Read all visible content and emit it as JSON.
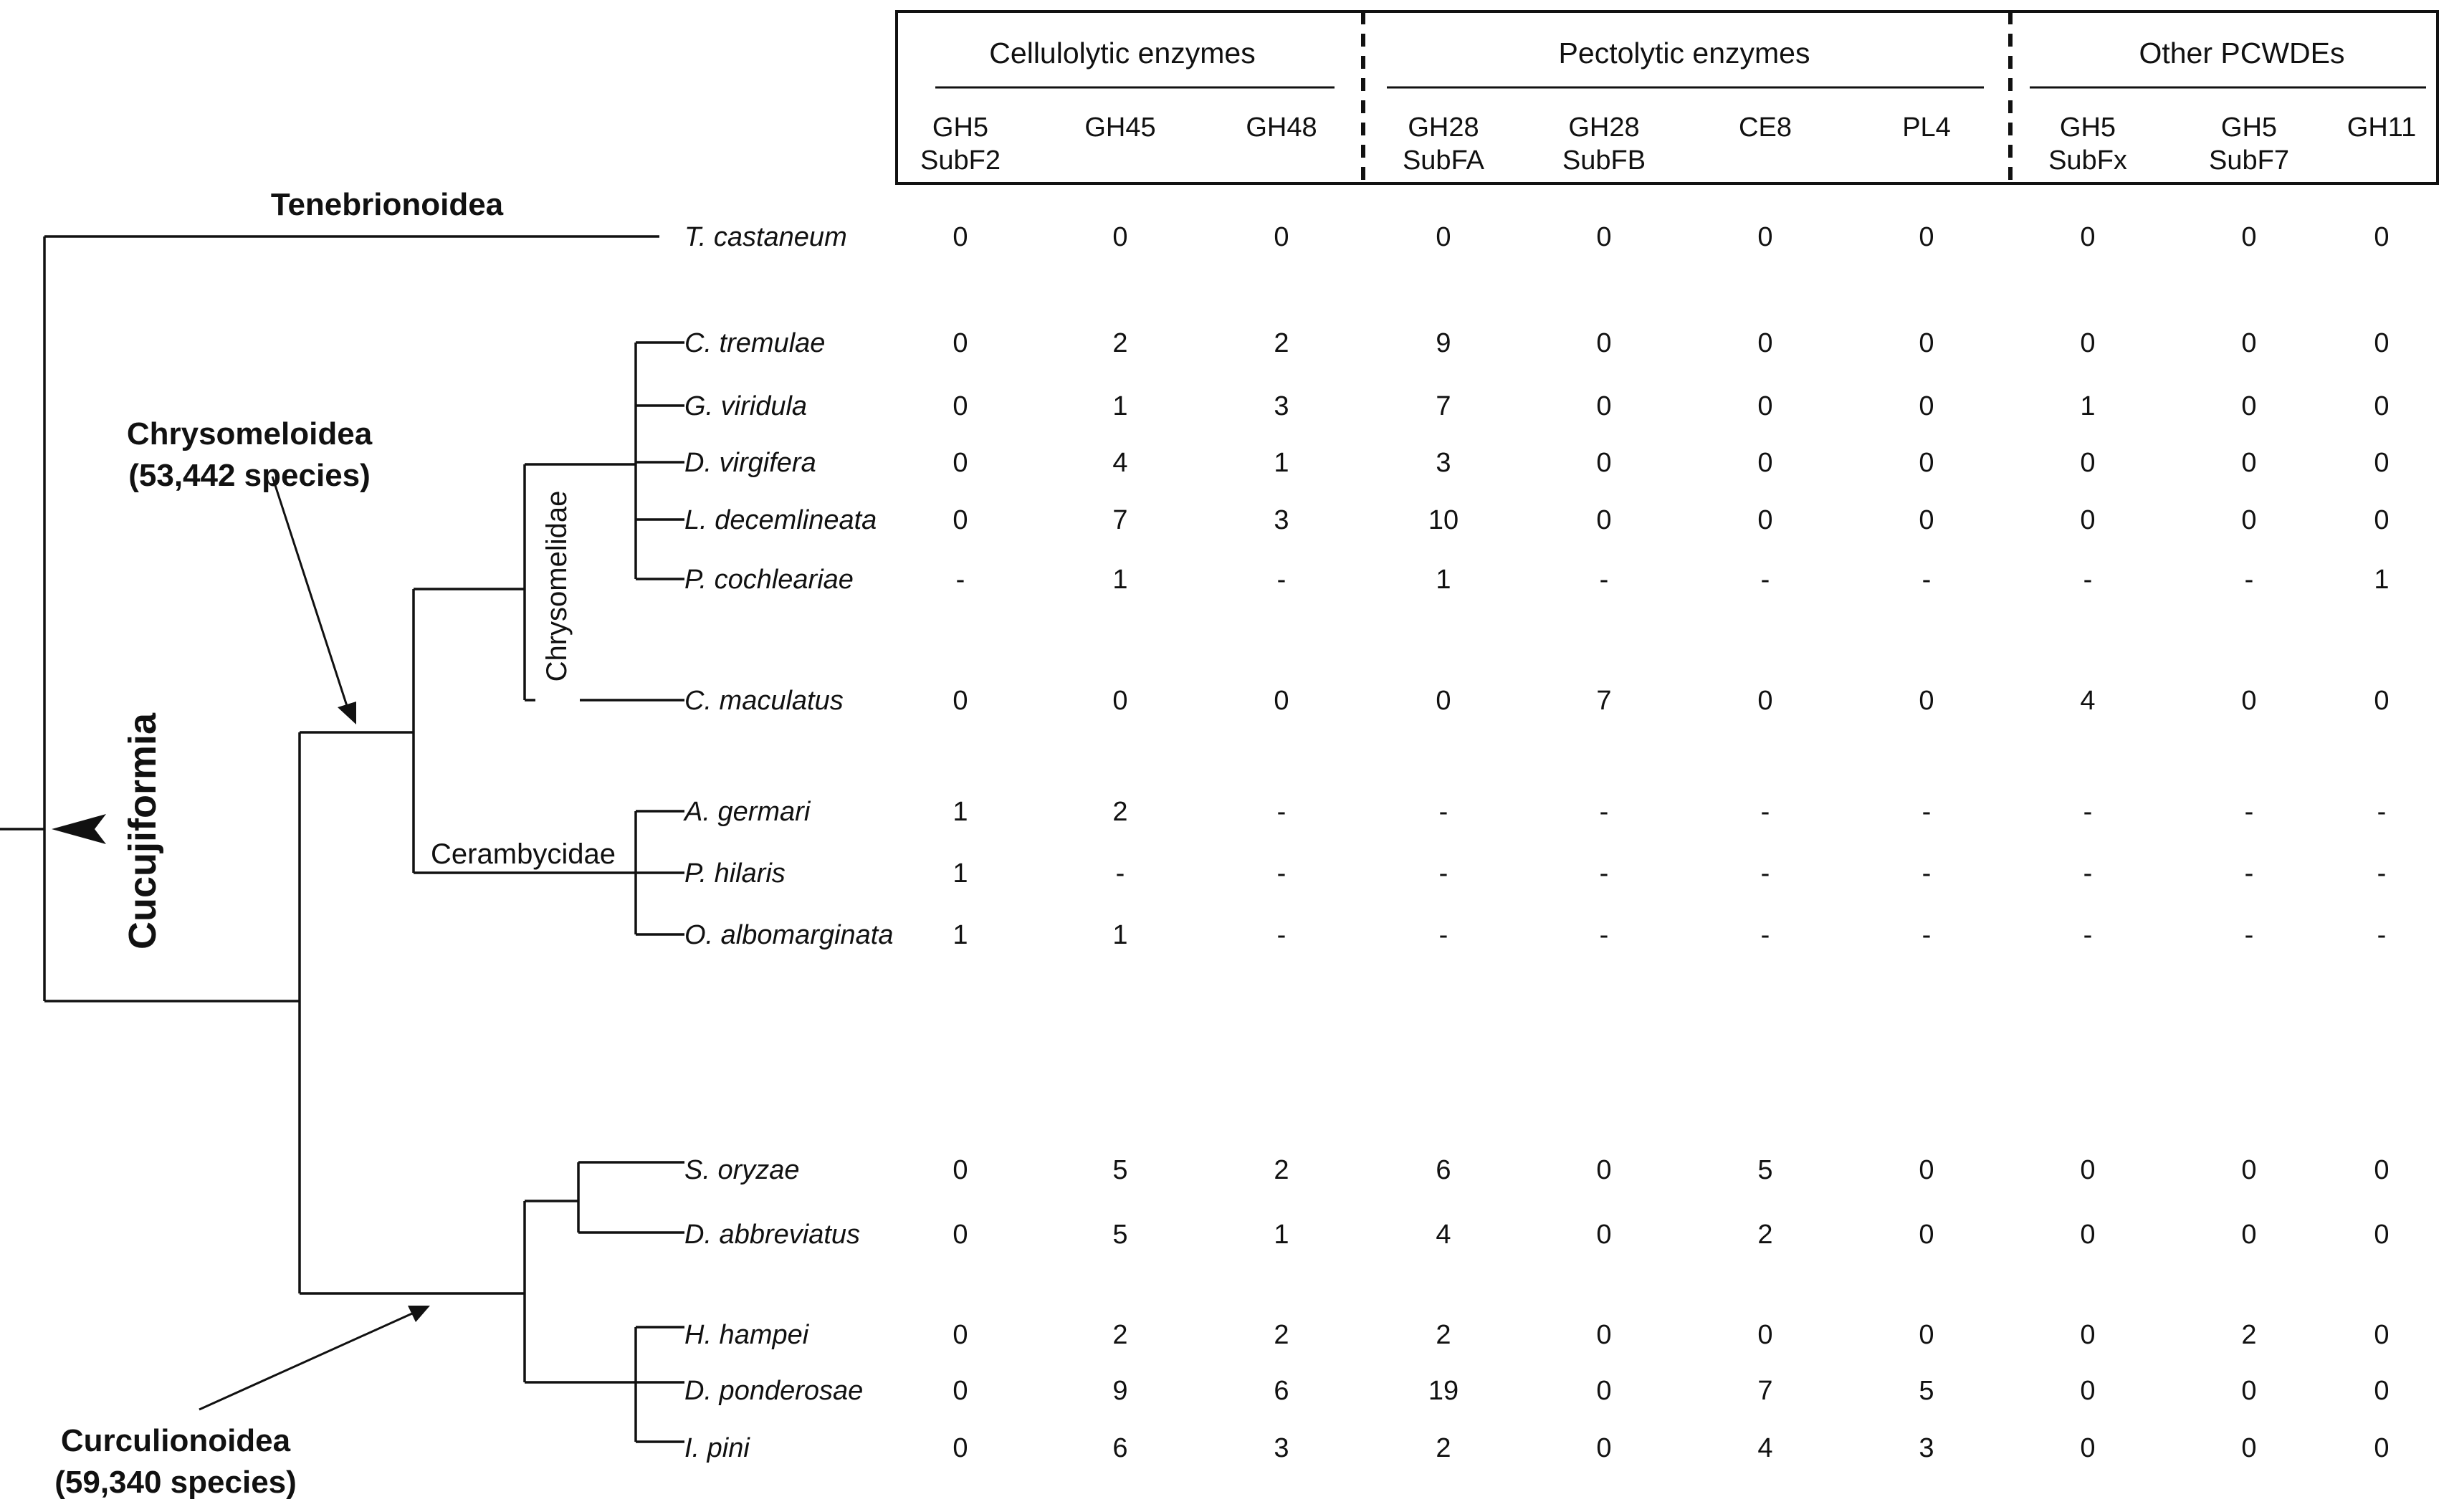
{
  "column_groups": [
    {
      "label": "Cellulolytic enzymes",
      "columns": [
        {
          "line1": "GH5",
          "line2": "SubF2"
        },
        {
          "line1": "GH45",
          "line2": ""
        },
        {
          "line1": "GH48",
          "line2": ""
        }
      ]
    },
    {
      "label": "Pectolytic enzymes",
      "columns": [
        {
          "line1": "GH28",
          "line2": "SubFA"
        },
        {
          "line1": "GH28",
          "line2": "SubFB"
        },
        {
          "line1": "CE8",
          "line2": ""
        },
        {
          "line1": "PL4",
          "line2": ""
        }
      ]
    },
    {
      "label": "Other PCWDEs",
      "columns": [
        {
          "line1": "GH5",
          "line2": "SubFx"
        },
        {
          "line1": "GH5",
          "line2": "SubF7"
        },
        {
          "line1": "GH11",
          "line2": ""
        }
      ]
    }
  ],
  "rows": [
    {
      "species": "T. castaneum",
      "values": [
        "0",
        "0",
        "0",
        "0",
        "0",
        "0",
        "0",
        "0",
        "0",
        "0"
      ]
    },
    {
      "species": "C. tremulae",
      "values": [
        "0",
        "2",
        "2",
        "9",
        "0",
        "0",
        "0",
        "0",
        "0",
        "0"
      ]
    },
    {
      "species": "G. viridula",
      "values": [
        "0",
        "1",
        "3",
        "7",
        "0",
        "0",
        "0",
        "1",
        "0",
        "0"
      ]
    },
    {
      "species": "D. virgifera",
      "values": [
        "0",
        "4",
        "1",
        "3",
        "0",
        "0",
        "0",
        "0",
        "0",
        "0"
      ]
    },
    {
      "species": "L. decemlineata",
      "values": [
        "0",
        "7",
        "3",
        "10",
        "0",
        "0",
        "0",
        "0",
        "0",
        "0"
      ]
    },
    {
      "species": "P. cochleariae",
      "values": [
        "-",
        "1",
        "-",
        "1",
        "-",
        "-",
        "-",
        "-",
        "-",
        "1"
      ]
    },
    {
      "species": "C. maculatus",
      "values": [
        "0",
        "0",
        "0",
        "0",
        "7",
        "0",
        "0",
        "4",
        "0",
        "0"
      ]
    },
    {
      "species": "A. germari",
      "values": [
        "1",
        "2",
        "-",
        "-",
        "-",
        "-",
        "-",
        "-",
        "-",
        "-"
      ]
    },
    {
      "species": "P. hilaris",
      "values": [
        "1",
        "-",
        "-",
        "-",
        "-",
        "-",
        "-",
        "-",
        "-",
        "-"
      ]
    },
    {
      "species": "O. albomarginata",
      "values": [
        "1",
        "1",
        "-",
        "-",
        "-",
        "-",
        "-",
        "-",
        "-",
        "-"
      ]
    },
    {
      "species": "S. oryzae",
      "values": [
        "0",
        "5",
        "2",
        "6",
        "0",
        "5",
        "0",
        "0",
        "0",
        "0"
      ]
    },
    {
      "species": "D. abbreviatus",
      "values": [
        "0",
        "5",
        "1",
        "4",
        "0",
        "2",
        "0",
        "0",
        "0",
        "0"
      ]
    },
    {
      "species": "H. hampei",
      "values": [
        "0",
        "2",
        "2",
        "2",
        "0",
        "0",
        "0",
        "0",
        "2",
        "0"
      ]
    },
    {
      "species": "D. ponderosae",
      "values": [
        "0",
        "9",
        "6",
        "19",
        "0",
        "7",
        "5",
        "0",
        "0",
        "0"
      ]
    },
    {
      "species": "I. pini",
      "values": [
        "0",
        "6",
        "3",
        "2",
        "0",
        "4",
        "3",
        "0",
        "0",
        "0"
      ]
    }
  ],
  "clades": {
    "tenebrionoidea": "Tenebrionoidea",
    "chrysomeloidea_line1": "Chrysomeloidea",
    "chrysomeloidea_line2": "(53,442 species)",
    "curculionoidea_line1": "Curculionoidea",
    "curculionoidea_line2": "(59,340 species)",
    "cucujiformia": "Cucujiformia",
    "chrysomelidae": "Chrysomelidae",
    "cerambycidae": "Cerambycidae"
  }
}
